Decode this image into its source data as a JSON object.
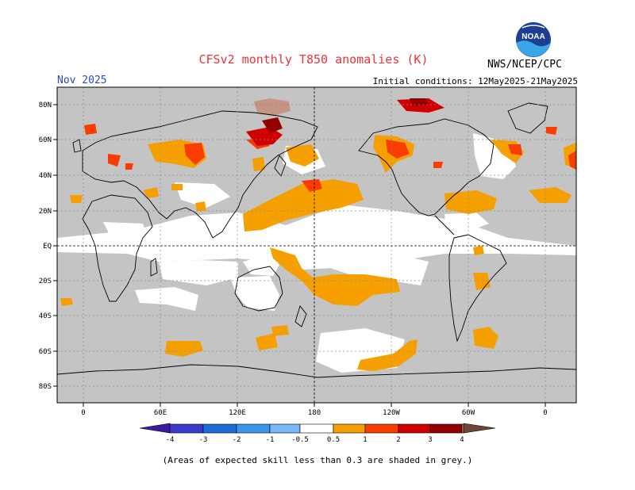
{
  "header": {
    "title": "CFSv2 monthly T850 anomalies (K)",
    "month": "Nov 2025",
    "initial_conditions": "Initial conditions: 12May2025-21May2025",
    "organization": "NWS/NCEP/CPC",
    "logo_text": "NOAA"
  },
  "map": {
    "lat_labels": [
      "80N",
      "60N",
      "40N",
      "20N",
      "EQ",
      "20S",
      "40S",
      "60S",
      "80S"
    ],
    "lon_labels": [
      "0",
      "60E",
      "120E",
      "180",
      "120W",
      "60W",
      "0"
    ],
    "grey_meaning": "low-skill"
  },
  "colorbar": {
    "tick_labels": [
      "-4",
      "-3",
      "-2",
      "-1",
      "-0.5",
      "0.5",
      "1",
      "2",
      "3",
      "4"
    ],
    "colors": [
      "#3a1aa0",
      "#3a3acc",
      "#1a6ed8",
      "#3c96ee",
      "#78b8f6",
      "#ffffff",
      "#f5a000",
      "#fa3c00",
      "#d00000",
      "#920000",
      "#c69484",
      "#6e4636"
    ]
  },
  "footnote": "(Areas of expected skill less than 0.3 are shaded in grey.)"
}
